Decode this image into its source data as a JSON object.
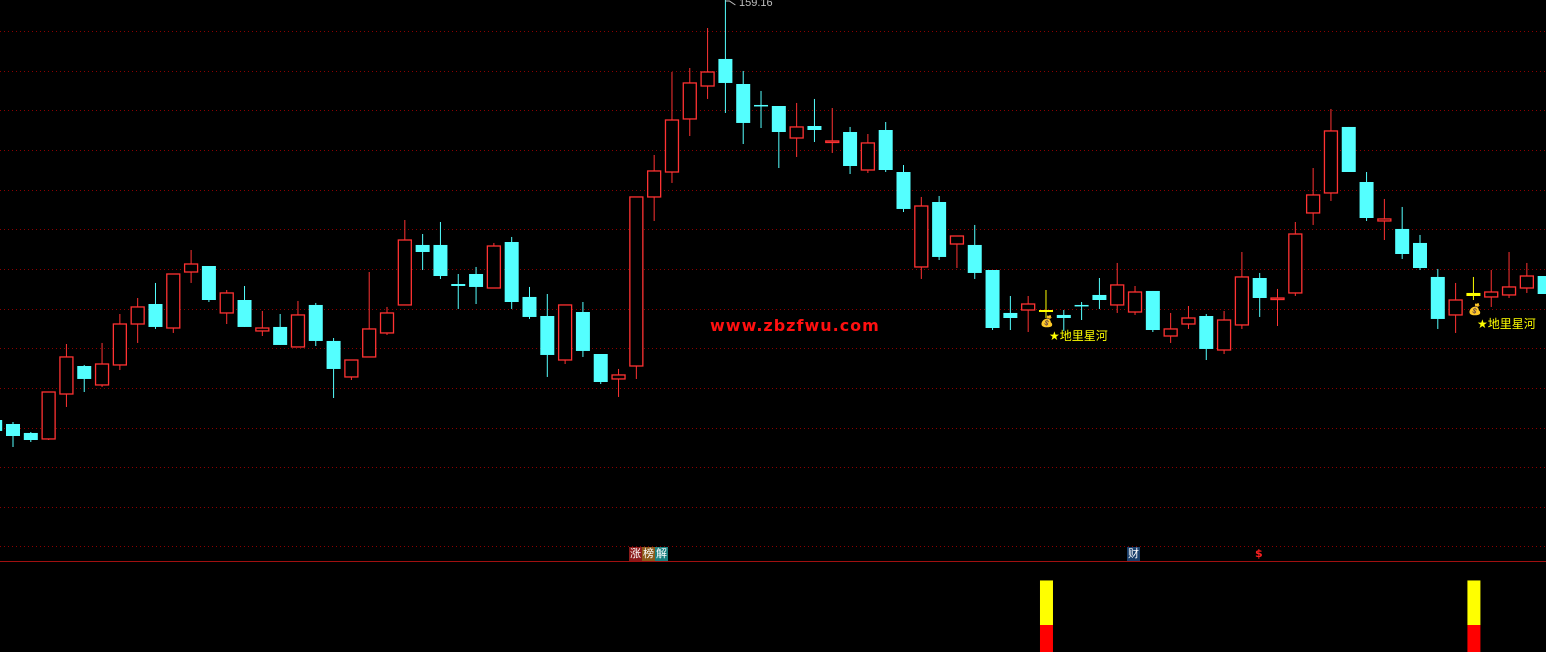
{
  "chart_data": {
    "type": "candlestick",
    "max_label": "159.16",
    "ylim": [
      102.6,
      159.16
    ],
    "grid": true,
    "colors": {
      "up": "#ff3232",
      "down": "#54ffff",
      "signal": "#ffff00",
      "grid": "#8b0000",
      "watermark": "#ff1010"
    },
    "candles": [
      [
        106.66,
        106.91,
        105.16,
        105.29
      ],
      [
        106.16,
        106.41,
        103.29,
        104.66
      ],
      [
        105.04,
        105.16,
        103.91,
        104.16
      ],
      [
        104.29,
        110.16,
        104.16,
        110.16
      ],
      [
        109.91,
        116.16,
        108.29,
        114.54
      ],
      [
        113.41,
        113.54,
        110.16,
        111.79
      ],
      [
        111.04,
        116.29,
        110.79,
        113.66
      ],
      [
        113.54,
        119.91,
        112.91,
        118.66
      ],
      [
        118.66,
        121.91,
        116.29,
        120.79
      ],
      [
        121.16,
        123.79,
        118.04,
        118.29
      ],
      [
        118.16,
        124.91,
        117.54,
        124.91
      ],
      [
        125.16,
        127.91,
        123.79,
        126.16
      ],
      [
        125.91,
        125.91,
        121.41,
        121.66
      ],
      [
        120.04,
        122.91,
        118.66,
        122.54
      ],
      [
        121.66,
        123.41,
        118.29,
        118.29
      ],
      [
        117.79,
        120.29,
        117.16,
        118.16
      ],
      [
        118.29,
        119.91,
        116.04,
        116.04
      ],
      [
        115.79,
        121.54,
        115.79,
        119.79
      ],
      [
        121.04,
        121.29,
        115.91,
        116.54
      ],
      [
        116.54,
        116.91,
        109.41,
        113.04
      ],
      [
        112.04,
        114.16,
        111.66,
        114.16
      ],
      [
        114.54,
        125.16,
        114.54,
        118.04
      ],
      [
        117.54,
        120.79,
        117.29,
        120.04
      ],
      [
        121.04,
        131.66,
        121.04,
        129.16
      ],
      [
        128.54,
        129.91,
        125.41,
        127.66
      ],
      [
        128.54,
        131.41,
        124.29,
        124.66
      ],
      [
        123.66,
        124.91,
        120.54,
        123.41
      ],
      [
        124.91,
        125.79,
        121.16,
        123.29
      ],
      [
        123.16,
        128.79,
        123.16,
        128.41
      ],
      [
        128.91,
        129.54,
        120.54,
        121.41
      ],
      [
        122.04,
        123.29,
        119.29,
        119.54
      ],
      [
        119.66,
        122.41,
        112.04,
        114.79
      ],
      [
        114.16,
        121.04,
        113.66,
        121.04
      ],
      [
        120.16,
        121.41,
        114.54,
        115.29
      ],
      [
        114.91,
        114.91,
        111.16,
        111.41
      ],
      [
        111.79,
        113.04,
        109.54,
        112.29
      ],
      [
        113.41,
        134.54,
        111.79,
        134.54
      ],
      [
        134.54,
        139.79,
        131.54,
        137.79
      ],
      [
        137.66,
        150.16,
        136.29,
        144.16
      ],
      [
        144.29,
        150.66,
        142.16,
        148.79
      ],
      [
        148.41,
        155.66,
        146.79,
        150.16
      ],
      [
        151.79,
        159.16,
        145.04,
        148.79
      ],
      [
        148.66,
        150.29,
        141.16,
        143.79
      ],
      [
        146.04,
        147.79,
        143.16,
        145.91
      ],
      [
        145.91,
        145.91,
        138.16,
        142.66
      ],
      [
        141.91,
        146.29,
        139.54,
        143.29
      ],
      [
        143.41,
        146.79,
        141.41,
        142.91
      ],
      [
        141.41,
        145.66,
        140.04,
        141.54
      ],
      [
        142.66,
        143.29,
        137.41,
        138.41
      ],
      [
        137.91,
        142.41,
        137.54,
        141.29
      ],
      [
        142.91,
        143.91,
        137.66,
        137.91
      ],
      [
        137.66,
        138.54,
        132.66,
        133.04
      ],
      [
        125.79,
        134.54,
        124.29,
        133.41
      ],
      [
        133.91,
        134.66,
        126.66,
        127.04
      ],
      [
        128.66,
        129.66,
        125.66,
        129.66
      ],
      [
        128.54,
        131.04,
        124.29,
        125.04
      ],
      [
        125.41,
        125.41,
        117.91,
        118.16
      ],
      [
        120.04,
        122.16,
        117.91,
        119.41
      ],
      [
        120.41,
        122.16,
        117.66,
        121.16
      ],
      [
        120.41,
        122.91,
        119.41,
        120.16
      ],
      [
        119.79,
        120.41,
        117.79,
        119.41
      ],
      [
        121.04,
        121.41,
        119.16,
        120.91
      ],
      [
        122.29,
        124.41,
        120.54,
        121.66
      ],
      [
        121.04,
        126.29,
        120.04,
        123.54
      ],
      [
        120.16,
        123.41,
        119.79,
        122.66
      ],
      [
        122.79,
        122.79,
        117.66,
        117.91
      ],
      [
        117.16,
        120.04,
        116.29,
        118.04
      ],
      [
        118.66,
        120.91,
        118.04,
        119.41
      ],
      [
        119.66,
        119.91,
        114.16,
        115.54
      ],
      [
        115.41,
        120.29,
        114.91,
        119.16
      ],
      [
        118.54,
        127.66,
        118.04,
        124.54
      ],
      [
        124.41,
        125.04,
        119.54,
        121.91
      ],
      [
        121.79,
        123.04,
        118.41,
        121.91
      ],
      [
        122.54,
        131.41,
        122.16,
        129.91
      ],
      [
        132.54,
        138.16,
        131.04,
        134.79
      ],
      [
        135.04,
        145.54,
        134.04,
        142.79
      ],
      [
        143.29,
        143.29,
        137.66,
        137.66
      ],
      [
        136.41,
        137.66,
        131.54,
        131.91
      ],
      [
        131.54,
        134.29,
        129.16,
        131.79
      ],
      [
        130.54,
        133.29,
        126.79,
        127.41
      ],
      [
        128.79,
        129.79,
        125.41,
        125.66
      ],
      [
        124.54,
        125.54,
        118.04,
        119.29
      ],
      [
        119.79,
        123.79,
        117.54,
        121.66
      ],
      [
        122.54,
        124.54,
        121.66,
        122.16
      ],
      [
        122.04,
        125.41,
        120.79,
        122.66
      ],
      [
        122.29,
        127.66,
        121.91,
        123.29
      ],
      [
        123.16,
        126.29,
        122.54,
        124.66
      ],
      [
        124.66,
        124.66,
        122.41,
        122.41
      ]
    ],
    "candle_fields": [
      "open",
      "high",
      "low",
      "close"
    ],
    "signal_candles": [
      59,
      83
    ],
    "signal_label": "★地里星河",
    "sub_panel": {
      "bars": [
        {
          "candle": 59,
          "red": 1,
          "yellow": 1.65
        },
        {
          "candle": 83,
          "red": 1,
          "yellow": 1.65
        }
      ]
    }
  },
  "markers": {
    "zhang": "涨",
    "bang": "榜",
    "jie": "解",
    "cai": "财",
    "dollar": "$"
  },
  "watermark": "www.zbzfwu.com",
  "icons": {
    "money_bag": "money-bag-icon"
  }
}
